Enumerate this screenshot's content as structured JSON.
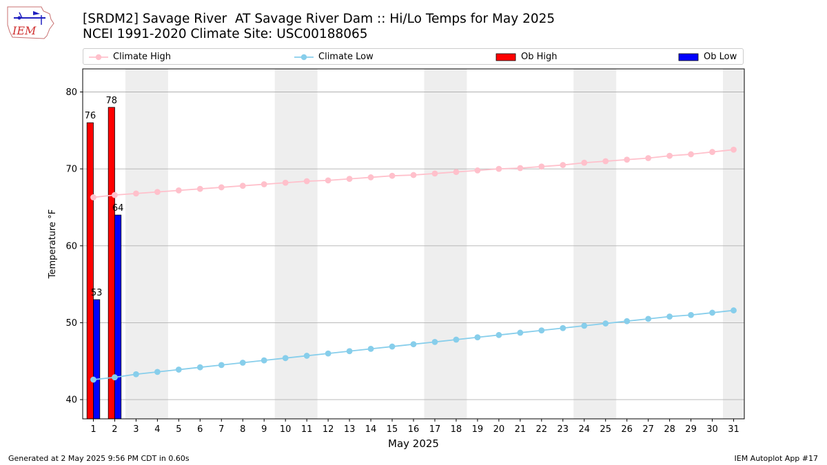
{
  "header": {
    "title_line1": "[SRDM2] Savage River  AT Savage River Dam :: Hi/Lo Temps for May 2025",
    "title_line2": "NCEI 1991-2020 Climate Site: USC00188065",
    "logo_text": "IEM"
  },
  "legend": {
    "climate_high": "Climate High",
    "climate_low": "Climate Low",
    "ob_high": "Ob High",
    "ob_low": "Ob Low"
  },
  "footer": {
    "generated": "Generated at 2 May 2025 9:56 PM CDT in 0.60s",
    "app": "IEM Autoplot App #17"
  },
  "colors": {
    "climate_high": "#ffc0cb",
    "climate_low": "#87ceeb",
    "ob_high": "#ff0000",
    "ob_low": "#0000ff",
    "weekend_shade": "#eeeeee",
    "grid": "#b0b0b0"
  },
  "chart_data": {
    "type": "bar",
    "xlabel": "May 2025",
    "ylabel": "Temperature °F",
    "xlim": [
      0.5,
      31.5
    ],
    "ylim": [
      37.5,
      83
    ],
    "yticks": [
      40,
      50,
      60,
      70,
      80
    ],
    "x": [
      1,
      2,
      3,
      4,
      5,
      6,
      7,
      8,
      9,
      10,
      11,
      12,
      13,
      14,
      15,
      16,
      17,
      18,
      19,
      20,
      21,
      22,
      23,
      24,
      25,
      26,
      27,
      28,
      29,
      30,
      31
    ],
    "grid": "y",
    "legend_position": "top",
    "shaded_days": [
      [
        3,
        4
      ],
      [
        10,
        11
      ],
      [
        17,
        18
      ],
      [
        24,
        25
      ],
      [
        31,
        31
      ]
    ],
    "series": [
      {
        "name": "Climate High",
        "kind": "line",
        "values": [
          66.3,
          66.6,
          66.8,
          67.0,
          67.2,
          67.4,
          67.6,
          67.8,
          68.0,
          68.2,
          68.4,
          68.5,
          68.7,
          68.9,
          69.1,
          69.2,
          69.4,
          69.6,
          69.8,
          70.0,
          70.1,
          70.3,
          70.5,
          70.8,
          71.0,
          71.2,
          71.4,
          71.7,
          71.9,
          72.2,
          72.5
        ]
      },
      {
        "name": "Climate Low",
        "kind": "line",
        "values": [
          42.6,
          42.9,
          43.3,
          43.6,
          43.9,
          44.2,
          44.5,
          44.8,
          45.1,
          45.4,
          45.7,
          46.0,
          46.3,
          46.6,
          46.9,
          47.2,
          47.5,
          47.8,
          48.1,
          48.4,
          48.7,
          49.0,
          49.3,
          49.6,
          49.9,
          50.2,
          50.5,
          50.8,
          51.0,
          51.3,
          51.6
        ]
      },
      {
        "name": "Ob High",
        "kind": "bar",
        "x": [
          1,
          2
        ],
        "values": [
          76,
          78
        ],
        "labels": [
          "76",
          "78"
        ]
      },
      {
        "name": "Ob Low",
        "kind": "bar",
        "x": [
          1,
          2
        ],
        "values": [
          53,
          64
        ],
        "labels": [
          "53",
          "64"
        ]
      }
    ]
  }
}
